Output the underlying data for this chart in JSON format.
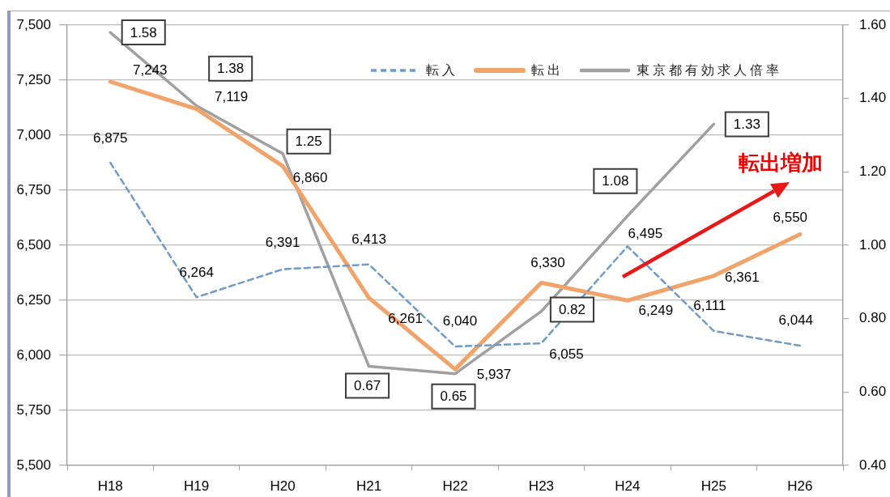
{
  "chart_data": {
    "type": "line",
    "categories": [
      "H18",
      "H19",
      "H20",
      "H21",
      "H22",
      "H23",
      "H24",
      "H25",
      "H26"
    ],
    "series": [
      {
        "name": "転入",
        "color": "#6f9bc6",
        "line_style": "dashed",
        "values": [
          6875,
          6264,
          6391,
          6413,
          6040,
          6055,
          6495,
          6111,
          6044
        ],
        "value_labels": [
          "6,875",
          "6,264",
          "6,391",
          "6,413",
          "6,040",
          "6,055",
          "6,495",
          "6,111",
          "6,044"
        ]
      },
      {
        "name": "転出",
        "color": "#f0a46c",
        "values": [
          7243,
          7119,
          6860,
          6261,
          5937,
          6330,
          6249,
          6361,
          6550
        ],
        "value_labels": [
          "7,243",
          "7,119",
          "6,860",
          "6,261",
          "5,937",
          "6,330",
          "6,249",
          "6,361",
          "6,550"
        ]
      },
      {
        "name": "東京都有効求人倍率",
        "color": "#a0a0a0",
        "axis": "y2",
        "values": [
          1.58,
          1.38,
          1.25,
          0.67,
          0.65,
          0.82,
          1.08,
          1.33,
          null
        ],
        "value_labels": [
          "1.58",
          "1.38",
          "1.25",
          "0.67",
          "0.65",
          "0.82",
          "1.08",
          "1.33",
          null
        ]
      }
    ],
    "ylim": [
      5500,
      7500
    ],
    "yticks": [
      {
        "value": 5500,
        "label": "5,500"
      },
      {
        "value": 5750,
        "label": "5,750"
      },
      {
        "value": 6000,
        "label": "6,000"
      },
      {
        "value": 6250,
        "label": "6,250"
      },
      {
        "value": 6500,
        "label": "6,500"
      },
      {
        "value": 6750,
        "label": "6,750"
      },
      {
        "value": 7000,
        "label": "7,000"
      },
      {
        "value": 7250,
        "label": "7,250"
      },
      {
        "value": 7500,
        "label": "7,500"
      }
    ],
    "y2lim": [
      0.4,
      1.6
    ],
    "y2ticks": [
      {
        "value": 0.4,
        "label": "0.40"
      },
      {
        "value": 0.6,
        "label": "0.60"
      },
      {
        "value": 0.8,
        "label": "0.80"
      },
      {
        "value": 1.0,
        "label": "1.00"
      },
      {
        "value": 1.2,
        "label": "1.20"
      },
      {
        "value": 1.4,
        "label": "1.40"
      },
      {
        "value": 1.6,
        "label": "1.60"
      }
    ],
    "grid": "y",
    "legend": "top right",
    "annotations": [
      "転出増加"
    ]
  }
}
